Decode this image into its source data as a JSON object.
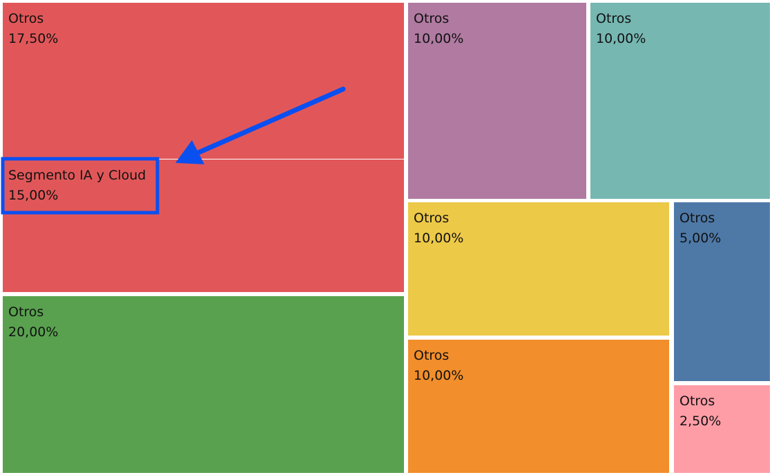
{
  "chart_data": {
    "type": "treemap",
    "cells": [
      {
        "label": "Otros",
        "value": 17.5,
        "display": "17,50%",
        "color": "#e15759"
      },
      {
        "label": "Segmento IA y Cloud",
        "value": 15.0,
        "display": "15,00%",
        "color": "#e15759"
      },
      {
        "label": "Otros",
        "value": 20.0,
        "display": "20,00%",
        "color": "#59a14f"
      },
      {
        "label": "Otros",
        "value": 10.0,
        "display": "10,00%",
        "color": "#b07aa1"
      },
      {
        "label": "Otros",
        "value": 10.0,
        "display": "10,00%",
        "color": "#76b7b2"
      },
      {
        "label": "Otros",
        "value": 10.0,
        "display": "10,00%",
        "color": "#edc948"
      },
      {
        "label": "Otros",
        "value": 5.0,
        "display": "5,00%",
        "color": "#4e79a7"
      },
      {
        "label": "Otros",
        "value": 10.0,
        "display": "10,00%",
        "color": "#f28e2b"
      },
      {
        "label": "Otros",
        "value": 2.5,
        "display": "2,50%",
        "color": "#ff9da7"
      }
    ],
    "highlight": {
      "target": "Segmento IA y Cloud",
      "annotation_color": "#0a4ff0"
    }
  }
}
